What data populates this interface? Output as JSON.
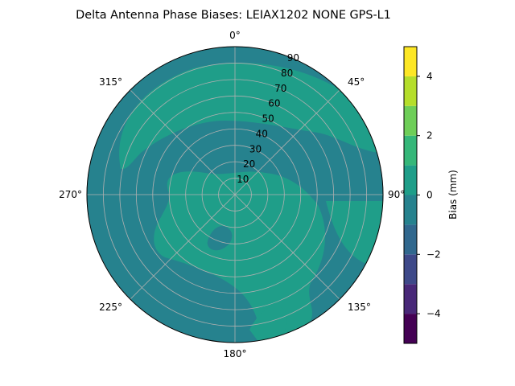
{
  "chart_data": {
    "type": "heatmap",
    "projection": "polar",
    "title": "Delta Antenna Phase Biases: LEIAX1202       NONE GPS-L1",
    "theta_zero_location": "top",
    "theta_direction": "clockwise",
    "theta_tick_labels": [
      "0°",
      "45°",
      "90°",
      "135°",
      "180°",
      "225°",
      "270°",
      "315°"
    ],
    "r_range": [
      0,
      90
    ],
    "r_tick_labels": [
      "10",
      "20",
      "30",
      "40",
      "50",
      "60",
      "70",
      "80",
      "90"
    ],
    "grid": true,
    "colorbar": {
      "label": "Bias (mm)",
      "range": [
        -5,
        5
      ],
      "levels": [
        -5,
        -4,
        -3,
        -2,
        -1,
        0,
        1,
        2,
        3,
        4,
        5
      ],
      "tick_labels": [
        "−4",
        "−2",
        "0",
        "2",
        "4"
      ],
      "colors": [
        "#440154",
        "#482878",
        "#3e4989",
        "#31688e",
        "#26828e",
        "#1f9e89",
        "#35b779",
        "#6ece58",
        "#b5de2b",
        "#fde725"
      ]
    },
    "field_description": "mostly in the -1 to 0 band with 0 to 1 band patches",
    "bands_present": [
      "-1 to 0",
      "0 to 1"
    ]
  }
}
